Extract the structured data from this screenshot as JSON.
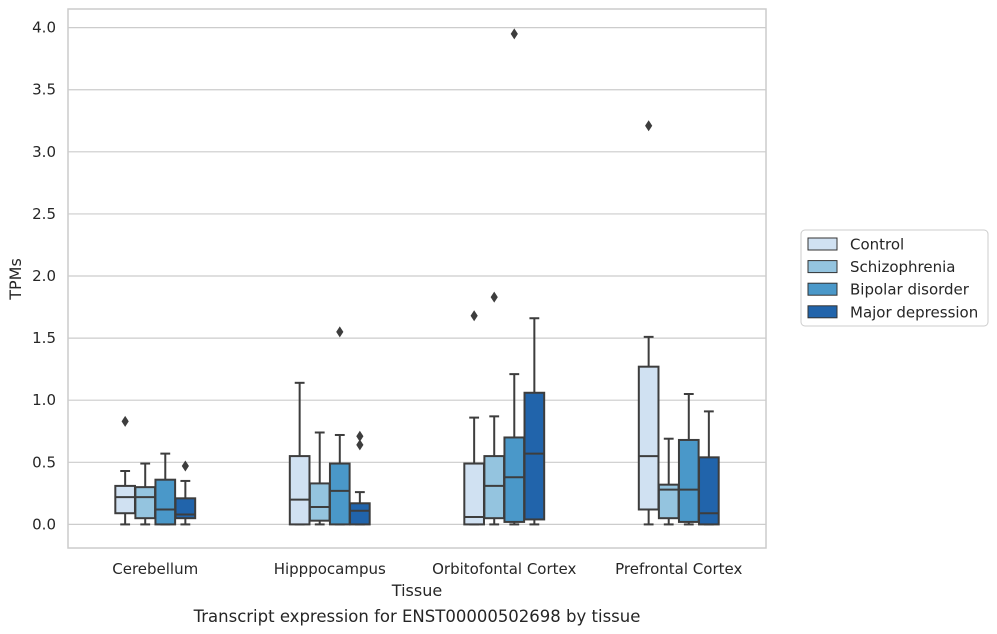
{
  "chart_data": {
    "type": "box",
    "xlabel": "Tissue",
    "ylabel": "TPMs",
    "caption": "Transcript expression for ENST00000502698 by tissue",
    "ylim": [
      -0.19,
      4.15
    ],
    "yticks": [
      "0.0",
      "0.5",
      "1.0",
      "1.5",
      "2.0",
      "2.5",
      "3.0",
      "3.5",
      "4.0"
    ],
    "grid": true,
    "legend_position": "right",
    "categories": [
      "Cerebellum",
      "Hipppocampus",
      "Orbitofontal Cortex",
      "Prefrontal Cortex"
    ],
    "series": [
      {
        "name": "Control",
        "color": "#d0e1f2",
        "boxes": [
          {
            "whislo": 0.0,
            "q1": 0.09,
            "med": 0.22,
            "q3": 0.31,
            "whishi": 0.43,
            "fliers": [
              0.83
            ]
          },
          {
            "whislo": 0.0,
            "q1": 0.0,
            "med": 0.2,
            "q3": 0.55,
            "whishi": 1.14,
            "fliers": []
          },
          {
            "whislo": 0.0,
            "q1": 0.0,
            "med": 0.06,
            "q3": 0.49,
            "whishi": 0.86,
            "fliers": [
              1.68
            ]
          },
          {
            "whislo": 0.0,
            "q1": 0.12,
            "med": 0.55,
            "q3": 1.27,
            "whishi": 1.51,
            "fliers": [
              3.21
            ]
          }
        ]
      },
      {
        "name": "Schizophrenia",
        "color": "#94c4df",
        "boxes": [
          {
            "whislo": 0.0,
            "q1": 0.05,
            "med": 0.22,
            "q3": 0.3,
            "whishi": 0.49,
            "fliers": []
          },
          {
            "whislo": 0.0,
            "q1": 0.03,
            "med": 0.14,
            "q3": 0.33,
            "whishi": 0.74,
            "fliers": []
          },
          {
            "whislo": 0.0,
            "q1": 0.05,
            "med": 0.31,
            "q3": 0.55,
            "whishi": 0.87,
            "fliers": [
              1.83
            ]
          },
          {
            "whislo": 0.0,
            "q1": 0.05,
            "med": 0.28,
            "q3": 0.32,
            "whishi": 0.69,
            "fliers": []
          }
        ]
      },
      {
        "name": "Bipolar disorder",
        "color": "#4a98c9",
        "boxes": [
          {
            "whislo": 0.0,
            "q1": 0.0,
            "med": 0.12,
            "q3": 0.36,
            "whishi": 0.57,
            "fliers": []
          },
          {
            "whislo": 0.0,
            "q1": 0.0,
            "med": 0.27,
            "q3": 0.49,
            "whishi": 0.72,
            "fliers": [
              1.55
            ]
          },
          {
            "whislo": 0.0,
            "q1": 0.02,
            "med": 0.38,
            "q3": 0.7,
            "whishi": 1.21,
            "fliers": [
              3.95
            ]
          },
          {
            "whislo": 0.0,
            "q1": 0.02,
            "med": 0.28,
            "q3": 0.68,
            "whishi": 1.05,
            "fliers": []
          }
        ]
      },
      {
        "name": "Major depression",
        "color": "#2164ab",
        "boxes": [
          {
            "whislo": 0.0,
            "q1": 0.05,
            "med": 0.08,
            "q3": 0.21,
            "whishi": 0.35,
            "fliers": [
              0.47
            ]
          },
          {
            "whislo": 0.0,
            "q1": 0.0,
            "med": 0.11,
            "q3": 0.17,
            "whishi": 0.26,
            "fliers": [
              0.64,
              0.71
            ]
          },
          {
            "whislo": 0.0,
            "q1": 0.04,
            "med": 0.57,
            "q3": 1.06,
            "whishi": 1.66,
            "fliers": []
          },
          {
            "whislo": 0.0,
            "q1": 0.0,
            "med": 0.09,
            "q3": 0.54,
            "whishi": 0.91,
            "fliers": []
          }
        ]
      }
    ]
  }
}
